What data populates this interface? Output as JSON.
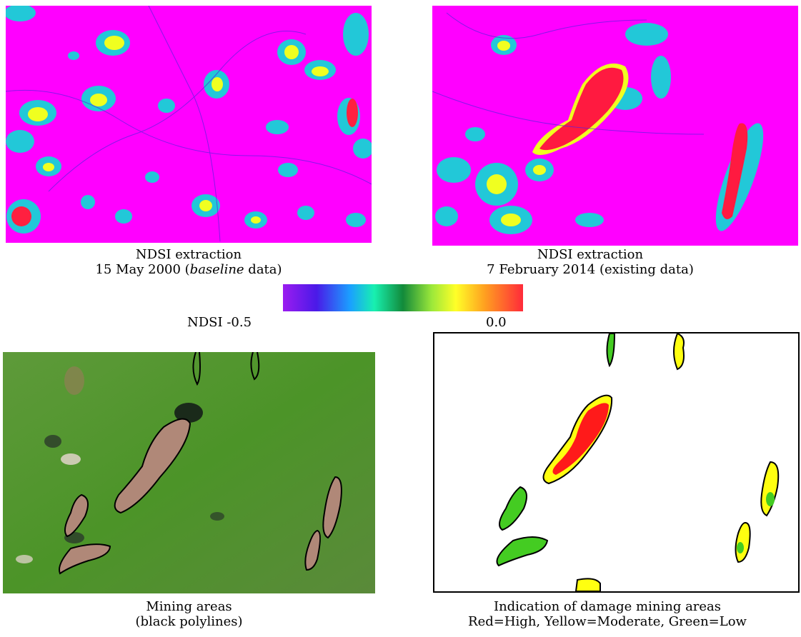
{
  "panels": {
    "top_left": {
      "caption_line1": "NDSI extraction",
      "caption_line2_prefix": "15 May 2000 (",
      "caption_line2_italic": "baseline",
      "caption_line2_suffix": " data)"
    },
    "top_right": {
      "caption_line1": "NDSI extraction",
      "caption_line2": "7 February 2014 (existing data)"
    },
    "bottom_left": {
      "caption_line1": "Mining areas",
      "caption_line2": "(black polylines)"
    },
    "bottom_right": {
      "caption_line1": "Indication of damage mining areas",
      "caption_line2": "Red=High, Yellow=Moderate, Green=Low"
    }
  },
  "colorbar": {
    "label": "NDSI  -0.5",
    "max_label": "0.0"
  },
  "colors": {
    "ndsi_background": "#ff00ff",
    "high": "#ff1a1a",
    "moderate": "#ffff00",
    "low": "#33cc22",
    "vegetation": "#4f9a2e",
    "mining": "#b08878"
  }
}
